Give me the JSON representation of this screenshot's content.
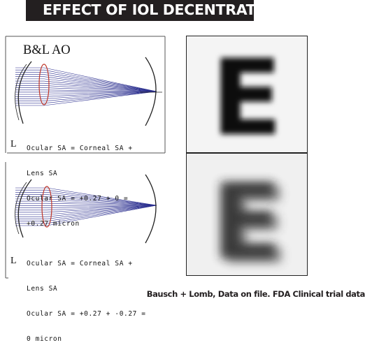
{
  "title": "EFFECT OF IOL DECENTRATION",
  "top_panel": {
    "brand": "B&L AO",
    "mark": "L",
    "lines": [
      "Ocular SA = Corneal SA +",
      "Lens SA",
      "Ocular SA = +0.27 + 0 =",
      "+0.27 micron"
    ]
  },
  "bottom_panel": {
    "mark": "L",
    "lines": [
      "Ocular SA = Corneal SA +",
      "Lens SA",
      "Ocular SA = +0.27 + -0.27 =",
      "0 micron"
    ]
  },
  "optotype": "E",
  "source": "Bausch + Lomb, Data on file. FDA Clinical trial data",
  "colors": {
    "title_bg": "#231f20",
    "rays": "#2b2f8f",
    "lens": "#c0392b"
  },
  "icons": [
    "eye-ray-diagram",
    "letter-e-sharp",
    "letter-e-blurred"
  ]
}
